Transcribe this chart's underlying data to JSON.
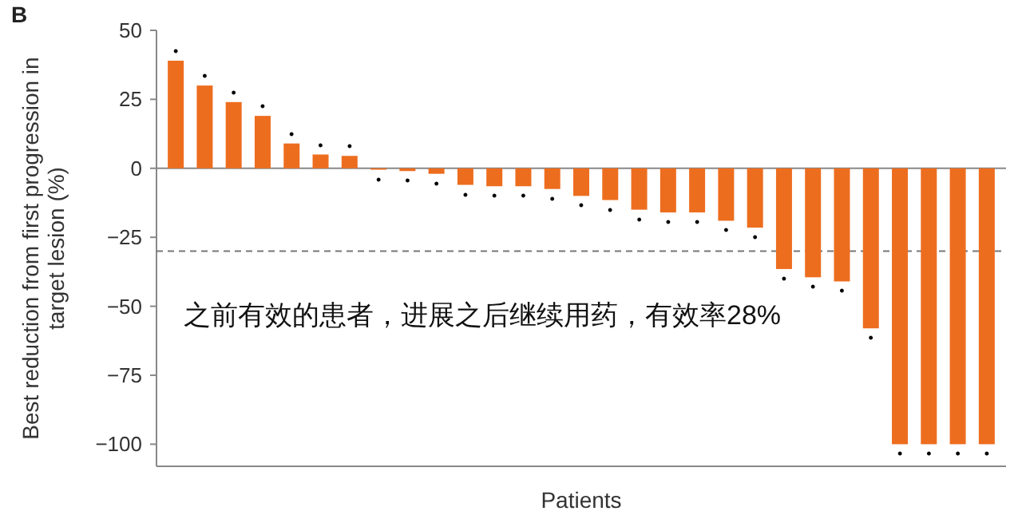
{
  "chart_data": {
    "type": "bar",
    "categories": [
      null,
      null,
      null,
      null,
      null,
      null,
      null,
      null,
      null,
      null,
      null,
      null,
      null,
      null,
      null,
      null,
      null,
      null,
      null,
      null,
      null,
      null,
      null,
      null,
      null,
      null,
      null,
      null,
      null
    ],
    "values": [
      39,
      30,
      24,
      19,
      9,
      5,
      4.5,
      -0.5,
      -1,
      -2,
      -6,
      -6.5,
      -6.5,
      -7.5,
      -10,
      -11.5,
      -15,
      -16,
      -16,
      -19,
      -21.5,
      -36.5,
      -39.5,
      -41,
      -58,
      -100,
      -100,
      -100,
      -100
    ],
    "value_labels": [
      "•",
      "•",
      "•",
      "•",
      "•",
      "•",
      "•",
      "•",
      "•",
      "•",
      "•",
      "•",
      "•",
      "•",
      "•",
      "•",
      "•",
      "•",
      "•",
      "•",
      "•",
      "•",
      "•",
      "•",
      "•",
      "•",
      "•",
      "•",
      "•"
    ],
    "color": "#ed6d1f",
    "ylim": [
      -108,
      50
    ],
    "yticks": [
      50,
      25,
      0,
      {
        "value": -25,
        "label": "−25"
      },
      {
        "value": -50,
        "label": "−50"
      },
      {
        "value": -75,
        "label": "−75"
      },
      {
        "value": -100,
        "label": "−100"
      }
    ],
    "ylabel": "Best reduction from first progression in target lesion (%)",
    "xlabel": "Patients",
    "ref_lines": [
      {
        "axis": "y",
        "value": -30,
        "color": "#777777",
        "line_style": "dashed"
      }
    ],
    "annotations": [
      "B",
      "之前有效的患者，进展之后继续用药，有效率28%"
    ]
  }
}
